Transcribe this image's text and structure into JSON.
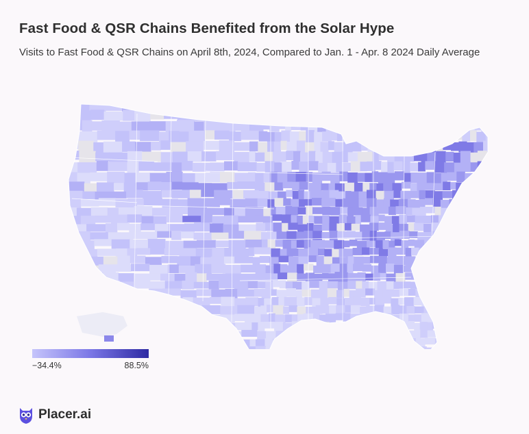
{
  "header": {
    "title": "Fast Food & QSR Chains Benefited from the Solar Hype",
    "subtitle": "Visits to Fast Food & QSR Chains on April 8th, 2024, Compared to Jan. 1 - Apr. 8 2024 Daily Average"
  },
  "legend": {
    "min_label": "−34.4%",
    "max_label": "88.5%",
    "min_value": -34.4,
    "max_value": 88.5,
    "colors": [
      "#c5c4fb",
      "#7b77e6",
      "#2e2aa3"
    ]
  },
  "map": {
    "region": "Contiguous United States, Alaska, Hawaii",
    "unit": "county",
    "no_data_color": "#e6e4ea",
    "land_color": "#dcdcf9"
  },
  "brand": {
    "name": "Placer.ai",
    "icon": "owl-logo-icon",
    "color": "#5b4fe0"
  }
}
